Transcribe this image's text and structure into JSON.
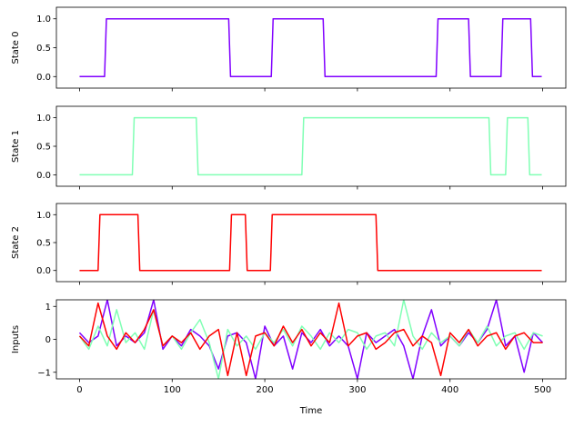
{
  "chart_data": [
    {
      "type": "line",
      "ylabel": "State 0",
      "x": [
        0,
        27,
        29,
        161,
        163,
        207,
        209,
        263,
        265,
        385,
        387,
        420,
        422,
        455,
        457,
        487,
        489,
        499
      ],
      "series": [
        {
          "color": "#8000ff",
          "values": [
            0,
            0,
            1,
            1,
            0,
            0,
            1,
            1,
            0,
            0,
            1,
            1,
            0,
            0,
            1,
            1,
            0,
            0
          ]
        }
      ],
      "xlim": [
        -25,
        525
      ],
      "xticks": [
        0,
        100,
        200,
        300,
        400,
        500
      ],
      "ylim": [
        -0.2,
        1.2
      ],
      "yticks": [
        {
          "value": 0,
          "label": "0.0"
        },
        {
          "value": 0.5,
          "label": "0.5"
        },
        {
          "value": 1,
          "label": "1.0"
        }
      ]
    },
    {
      "type": "line",
      "ylabel": "State 1",
      "x": [
        0,
        57,
        59,
        126,
        128,
        240,
        242,
        442,
        444,
        460,
        462,
        484,
        486,
        499
      ],
      "series": [
        {
          "color": "#80ffb4",
          "values": [
            0,
            0,
            1,
            1,
            0,
            0,
            1,
            1,
            0,
            0,
            1,
            1,
            0,
            0
          ]
        }
      ],
      "xlim": [
        -25,
        525
      ],
      "xticks": [
        0,
        100,
        200,
        300,
        400,
        500
      ],
      "ylim": [
        -0.2,
        1.2
      ],
      "yticks": [
        {
          "value": 0,
          "label": "0.0"
        },
        {
          "value": 0.5,
          "label": "0.5"
        },
        {
          "value": 1,
          "label": "1.0"
        }
      ]
    },
    {
      "type": "line",
      "ylabel": "State 2",
      "x": [
        0,
        20,
        22,
        63,
        65,
        162,
        164,
        179,
        181,
        206,
        208,
        320,
        322,
        499
      ],
      "series": [
        {
          "color": "#ff0000",
          "values": [
            0,
            0,
            1,
            1,
            0,
            0,
            1,
            1,
            0,
            0,
            1,
            1,
            0,
            0
          ]
        }
      ],
      "xlim": [
        -25,
        525
      ],
      "xticks": [
        0,
        100,
        200,
        300,
        400,
        500
      ],
      "ylim": [
        -0.2,
        1.2
      ],
      "yticks": [
        {
          "value": 0,
          "label": "0.0"
        },
        {
          "value": 0.5,
          "label": "0.5"
        },
        {
          "value": 1,
          "label": "1.0"
        }
      ]
    },
    {
      "type": "line",
      "ylabel": "Inputs",
      "xlabel": "Time",
      "x": [
        0,
        10,
        20,
        30,
        40,
        50,
        60,
        70,
        80,
        90,
        100,
        110,
        120,
        130,
        140,
        150,
        160,
        170,
        180,
        190,
        200,
        210,
        220,
        230,
        240,
        250,
        260,
        270,
        280,
        290,
        300,
        310,
        320,
        330,
        340,
        350,
        360,
        370,
        380,
        390,
        400,
        410,
        420,
        430,
        440,
        450,
        460,
        470,
        480,
        490,
        500
      ],
      "series": [
        {
          "color": "#8000ff",
          "values": [
            0.2,
            -0.1,
            0.1,
            1.2,
            -0.2,
            0.1,
            -0.1,
            0.2,
            1.2,
            -0.3,
            0.1,
            -0.2,
            0.3,
            0.1,
            -0.2,
            -0.9,
            0.1,
            0.2,
            -0.1,
            -1.2,
            0.4,
            -0.2,
            0.1,
            -0.9,
            0.2,
            -0.1,
            0.3,
            -0.2,
            0.1,
            -0.2,
            -1.2,
            0.2,
            -0.1,
            0.1,
            0.3,
            -0.2,
            -1.2,
            0.1,
            0.9,
            -0.2,
            0.1,
            -0.2,
            0.2,
            -0.1,
            0.3,
            1.2,
            -0.2,
            0.1,
            -1.0,
            0.2,
            -0.1
          ]
        },
        {
          "color": "#80ffb4",
          "values": [
            0.1,
            -0.3,
            0.4,
            -0.2,
            0.9,
            -0.1,
            0.2,
            -0.3,
            0.9,
            -0.2,
            0.1,
            -0.3,
            0.2,
            0.6,
            -0.1,
            -1.2,
            0.3,
            -0.2,
            0.1,
            -0.3,
            0.2,
            -0.1,
            0.3,
            -0.2,
            0.4,
            0.1,
            -0.3,
            0.2,
            -0.1,
            0.3,
            0.2,
            -0.3,
            0.1,
            0.2,
            -0.2,
            1.2,
            0.1,
            -0.3,
            0.2,
            -0.1,
            0.1,
            -0.2,
            0.3,
            -0.1,
            0.4,
            -0.2,
            0.1,
            0.2,
            -0.3,
            0.2,
            0.1
          ]
        },
        {
          "color": "#ff0000",
          "values": [
            0.1,
            -0.2,
            1.1,
            0.1,
            -0.3,
            0.2,
            -0.1,
            0.3,
            0.9,
            -0.2,
            0.1,
            -0.1,
            0.2,
            -0.3,
            0.1,
            0.3,
            -1.1,
            0.2,
            -1.1,
            0.1,
            0.2,
            -0.2,
            0.4,
            -0.1,
            0.3,
            -0.2,
            0.2,
            -0.1,
            1.1,
            -0.2,
            0.1,
            0.2,
            -0.3,
            -0.1,
            0.2,
            0.3,
            -0.2,
            0.1,
            -0.1,
            -1.1,
            0.2,
            -0.1,
            0.3,
            -0.2,
            0.1,
            0.2,
            -0.3,
            0.1,
            0.2,
            -0.1,
            -0.1
          ]
        }
      ],
      "xlim": [
        -25,
        525
      ],
      "xticks": [
        0,
        100,
        200,
        300,
        400,
        500
      ],
      "ylim": [
        -1.2,
        1.2
      ],
      "yticks": [
        {
          "value": -1,
          "label": "−1"
        },
        0,
        1
      ]
    }
  ]
}
